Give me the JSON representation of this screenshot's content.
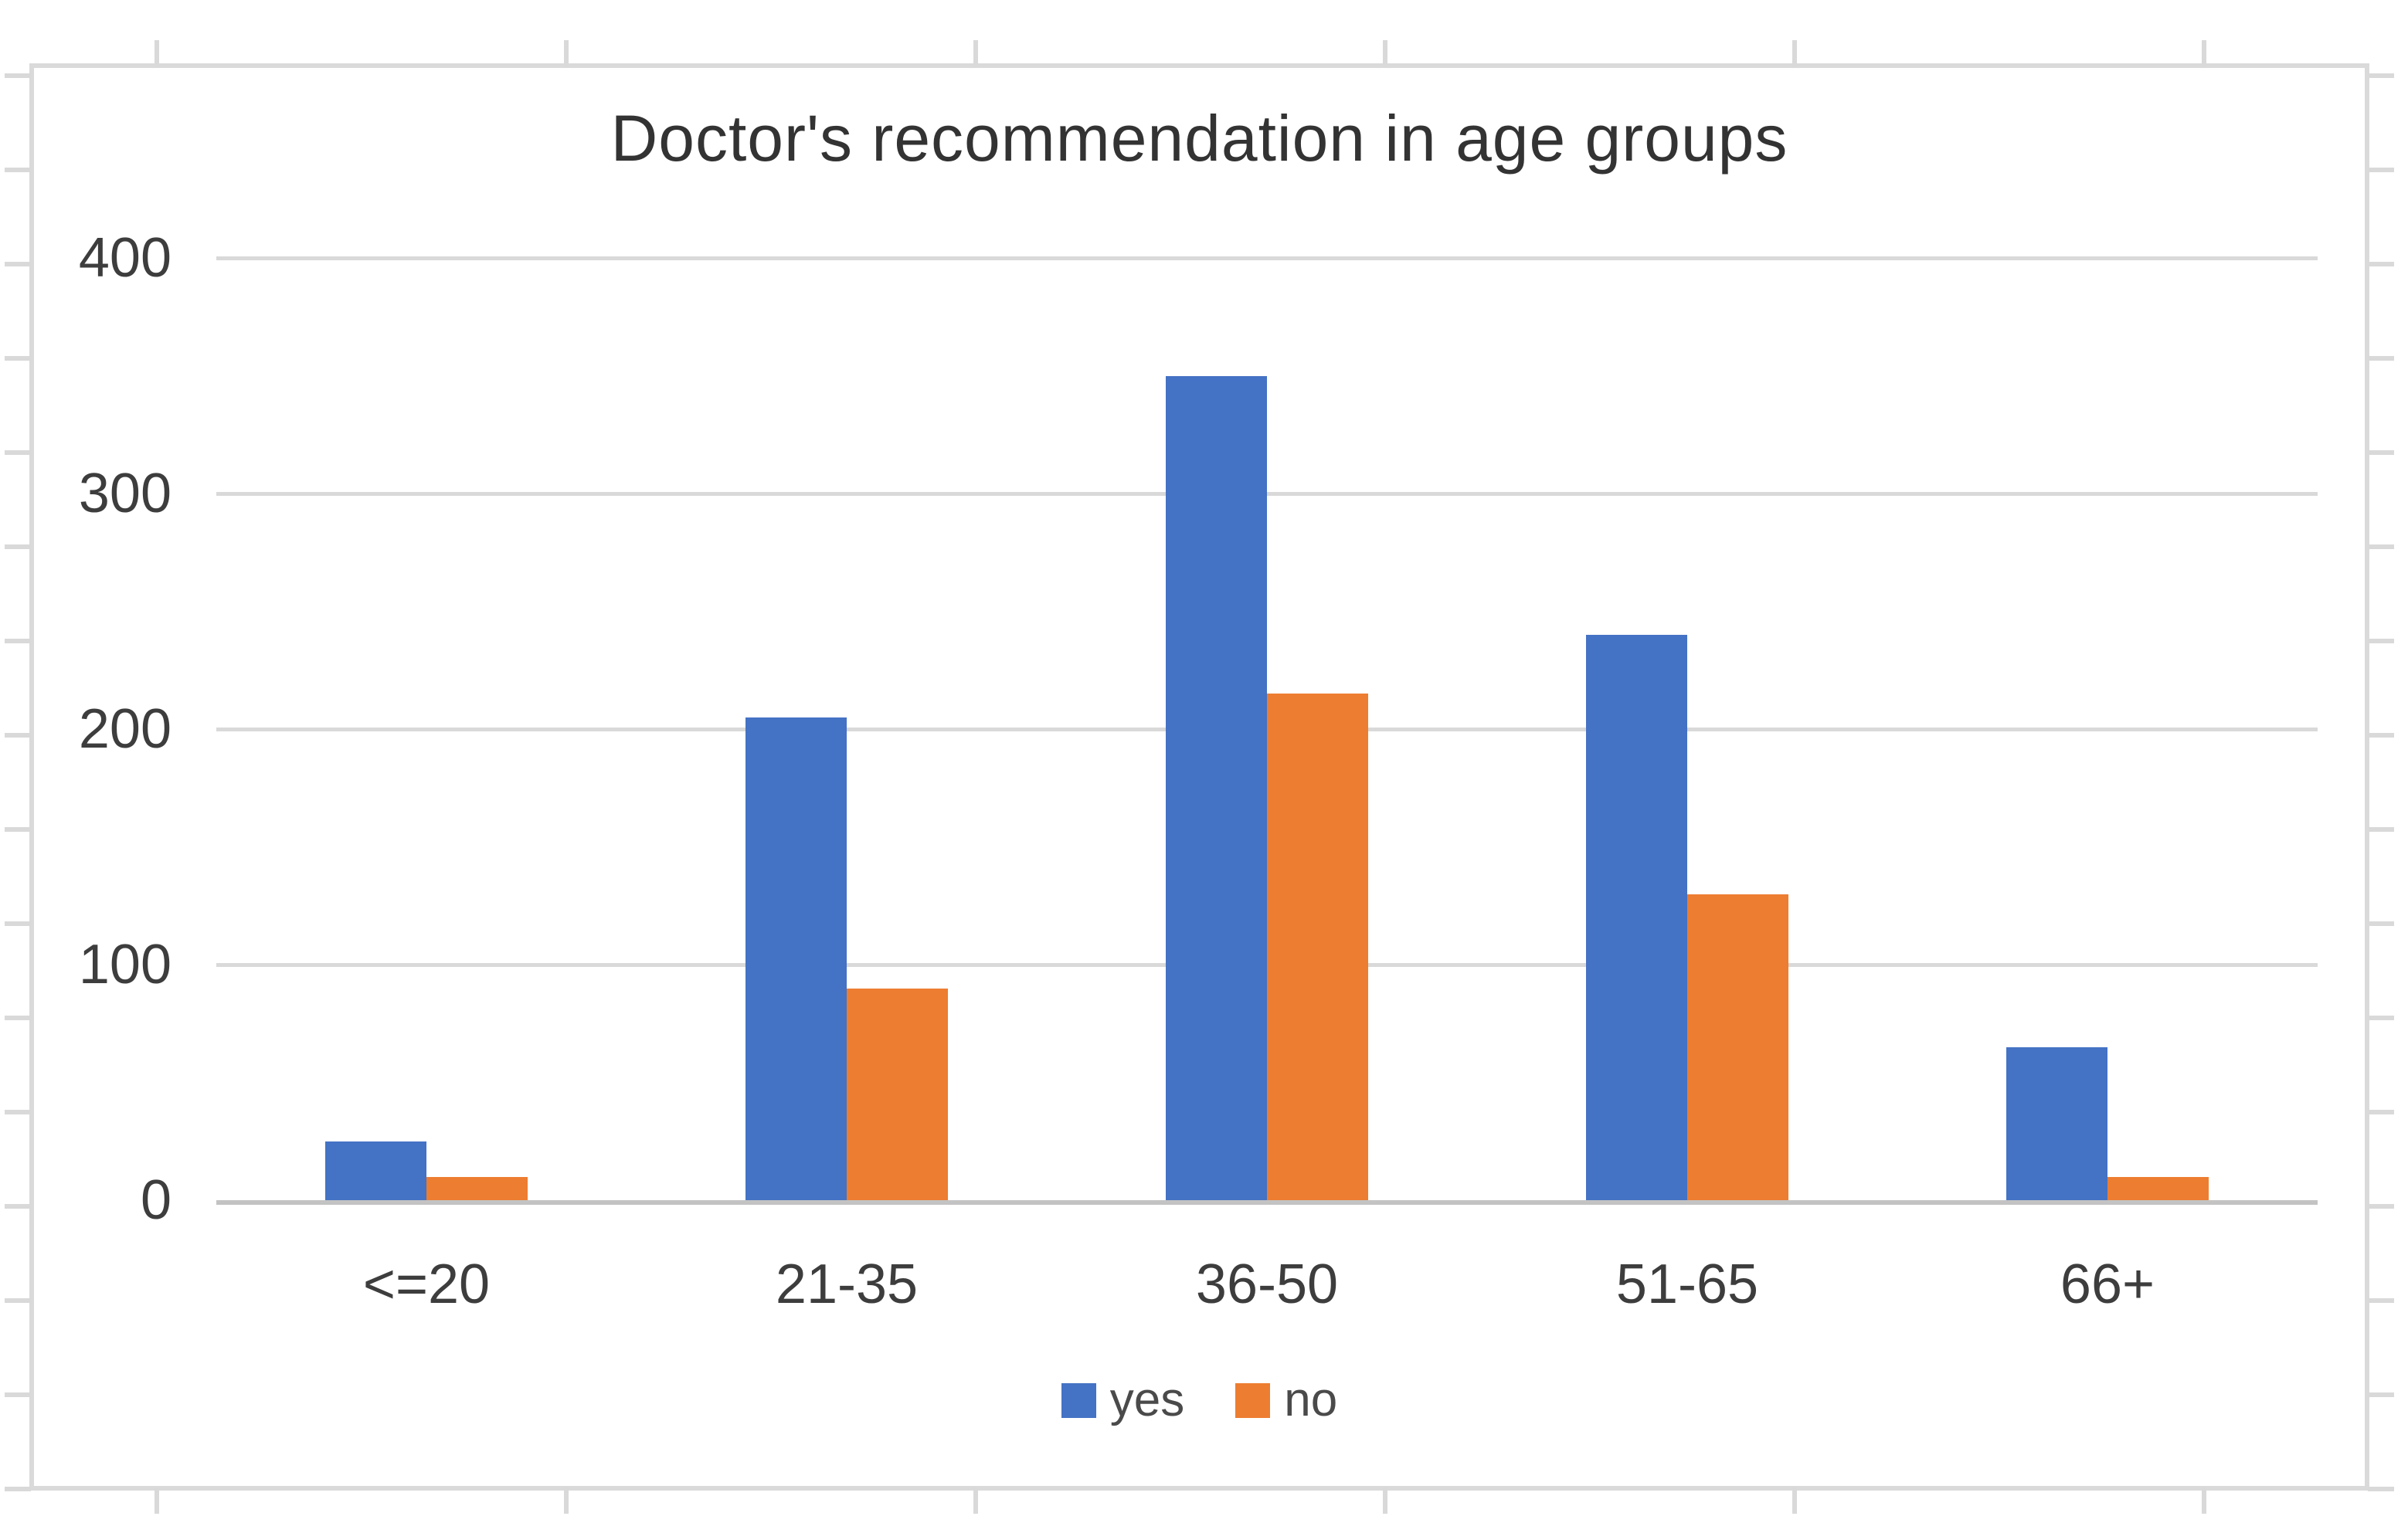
{
  "chart_data": {
    "type": "bar",
    "title": "Doctor's recommendation in age groups",
    "categories": [
      "<=20",
      "21-35",
      "36-50",
      "51-65",
      "66+"
    ],
    "series": [
      {
        "name": "yes",
        "color": "#4472C4",
        "values": [
          25,
          205,
          350,
          240,
          65
        ]
      },
      {
        "name": "no",
        "color": "#ED7D31",
        "values": [
          10,
          90,
          215,
          130,
          10
        ]
      }
    ],
    "ylim": [
      0,
      400
    ],
    "yticks": [
      0,
      100,
      200,
      300,
      400
    ],
    "xlabel": "",
    "ylabel": "",
    "grid": "horizontal",
    "legend_position": "bottom"
  },
  "colors": {
    "background": "#FFFFFF",
    "frame_border": "#DADADA",
    "gridline": "#D9D9D9",
    "axis_line": "#C3C3C3",
    "edge_tick": "#D9D9D9",
    "title_text": "#333333",
    "axis_text": "#3D3D3D",
    "legend_text": "#4A4A4A"
  }
}
